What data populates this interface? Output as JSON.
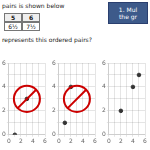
{
  "chart_data": [
    {
      "type": "table",
      "title": "1. Mul\nthe gr",
      "subtitle": "pairs is shown below",
      "x": [
        5,
        6
      ],
      "values": [
        6.5,
        7.5
      ],
      "value_labels": [
        "6½",
        "7½"
      ],
      "annotations": [
        "represents this ordered pairs?"
      ],
      "color": "#3d5a8a"
    },
    {
      "type": "scatter",
      "x": [
        3,
        1
      ],
      "values": [
        3,
        0
      ],
      "color": "#333333",
      "xlim": [
        0,
        6
      ],
      "ylim": [
        0,
        6
      ],
      "xticks": [
        0,
        {
          "value": 1,
          "label": null
        },
        2,
        {
          "value": 3,
          "label": null
        },
        4,
        {
          "value": 5,
          "label": null
        },
        6
      ],
      "yticks": [
        0,
        {
          "value": 1,
          "label": null
        },
        2,
        {
          "value": 3,
          "label": null
        },
        4,
        {
          "value": 5,
          "label": null
        },
        6
      ],
      "grid": true,
      "annotations": [
        {
          "shape": "no_symbol",
          "color": "#cc0000"
        }
      ]
    },
    {
      "type": "scatter",
      "x": [
        2,
        1
      ],
      "values": [
        4,
        1
      ],
      "color": "#333333",
      "xlim": [
        0,
        6
      ],
      "ylim": [
        0,
        6
      ],
      "xticks": [
        0,
        {
          "value": 1,
          "label": null
        },
        2,
        {
          "value": 3,
          "label": null
        },
        4,
        {
          "value": 5,
          "label": null
        },
        6
      ],
      "yticks": [
        0,
        {
          "value": 1,
          "label": null
        },
        2,
        {
          "value": 3,
          "label": null
        },
        4,
        {
          "value": 5,
          "label": null
        },
        6
      ],
      "grid": true,
      "annotations": [
        {
          "shape": "no_symbol",
          "color": "#cc0000"
        }
      ]
    },
    {
      "type": "scatter",
      "x": [
        2,
        4,
        5
      ],
      "values": [
        2,
        4,
        5
      ],
      "color": "#333333",
      "xlim": [
        0,
        6
      ],
      "ylim": [
        0,
        6
      ],
      "xticks": [
        0,
        {
          "value": 1,
          "label": null
        },
        2,
        {
          "value": 3,
          "label": null
        },
        4,
        {
          "value": 5,
          "label": null
        },
        6
      ],
      "yticks": [
        0,
        {
          "value": 1,
          "label": null
        },
        2,
        {
          "value": 3,
          "label": null
        },
        4,
        {
          "value": 5,
          "label": null
        },
        6
      ],
      "grid": true
    }
  ]
}
